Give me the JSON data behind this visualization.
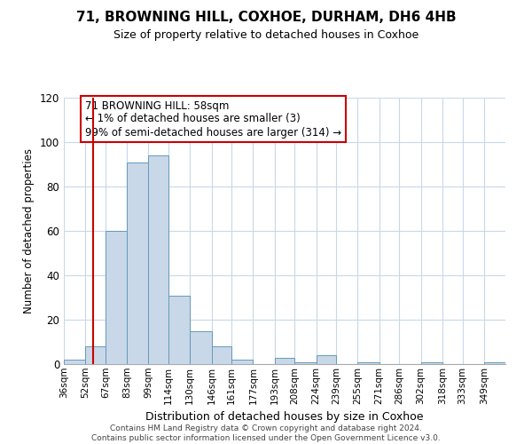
{
  "title": "71, BROWNING HILL, COXHOE, DURHAM, DH6 4HB",
  "subtitle": "Size of property relative to detached houses in Coxhoe",
  "xlabel": "Distribution of detached houses by size in Coxhoe",
  "ylabel": "Number of detached properties",
  "bin_labels": [
    "36sqm",
    "52sqm",
    "67sqm",
    "83sqm",
    "99sqm",
    "114sqm",
    "130sqm",
    "146sqm",
    "161sqm",
    "177sqm",
    "193sqm",
    "208sqm",
    "224sqm",
    "239sqm",
    "255sqm",
    "271sqm",
    "286sqm",
    "302sqm",
    "318sqm",
    "333sqm",
    "349sqm"
  ],
  "bin_edges": [
    36,
    52,
    67,
    83,
    99,
    114,
    130,
    146,
    161,
    177,
    193,
    208,
    224,
    239,
    255,
    271,
    286,
    302,
    318,
    333,
    349
  ],
  "bar_heights": [
    2,
    8,
    60,
    91,
    94,
    31,
    15,
    8,
    2,
    0,
    3,
    1,
    4,
    0,
    1,
    0,
    0,
    1,
    0,
    0,
    1
  ],
  "bar_color": "#c8d8e8",
  "bar_edgecolor": "#6699bb",
  "property_line_x": 58,
  "property_line_color": "#cc0000",
  "annotation_text": "71 BROWNING HILL: 58sqm\n← 1% of detached houses are smaller (3)\n99% of semi-detached houses are larger (314) →",
  "annotation_box_edgecolor": "#cc0000",
  "annotation_box_facecolor": "#ffffff",
  "ylim": [
    0,
    120
  ],
  "yticks": [
    0,
    20,
    40,
    60,
    80,
    100,
    120
  ],
  "footer_line1": "Contains HM Land Registry data © Crown copyright and database right 2024.",
  "footer_line2": "Contains public sector information licensed under the Open Government Licence v3.0.",
  "background_color": "#ffffff",
  "grid_color": "#c8d8e8"
}
